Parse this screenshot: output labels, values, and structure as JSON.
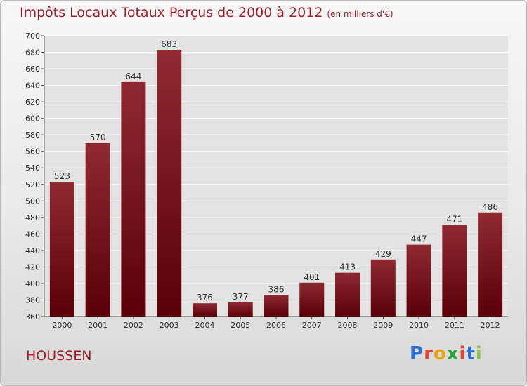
{
  "title": "Impôts Locaux Totaux Perçus de 2000 à 2012",
  "unit": "(en milliers d'€)",
  "city": "HOUSSEN",
  "logo": {
    "letters": [
      "P",
      "r",
      "o",
      "x",
      "i",
      "t",
      "i"
    ],
    "colors": [
      "#2b6fd6",
      "#e8432f",
      "#f0a400",
      "#2aa53a",
      "#e8432f",
      "#2b6fd6",
      "#8bc34a"
    ]
  },
  "colors": {
    "bar": "#7a1118",
    "bar_highlight": "#9c2a31",
    "title": "#a01f2b"
  },
  "chart_data": {
    "type": "bar",
    "categories": [
      "2000",
      "2001",
      "2002",
      "2003",
      "2004",
      "2005",
      "2006",
      "2007",
      "2008",
      "2009",
      "2010",
      "2011",
      "2012"
    ],
    "values": [
      523,
      570,
      644,
      683,
      376,
      377,
      386,
      401,
      413,
      429,
      447,
      471,
      486
    ],
    "ylim": [
      360,
      700
    ],
    "yticks": [
      360,
      380,
      400,
      420,
      440,
      460,
      480,
      500,
      520,
      540,
      560,
      580,
      600,
      620,
      640,
      660,
      680,
      700
    ],
    "grid": true,
    "data_labels": true
  }
}
